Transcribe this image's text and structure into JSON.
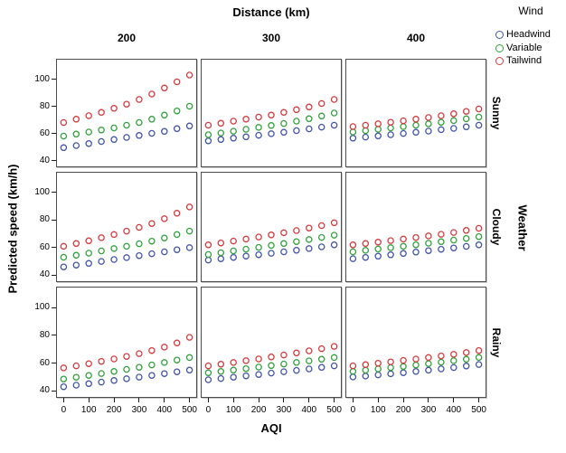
{
  "chart_data": {
    "type": "scatter",
    "xlabel": "AQI",
    "ylabel": "Predicted speed (km/h)",
    "x_ticks": [
      0,
      100,
      200,
      300,
      400,
      500
    ],
    "y_ticks": [
      40,
      60,
      80,
      100
    ],
    "xlim": [
      -30,
      530
    ],
    "ylim": [
      35,
      115
    ],
    "grid": false,
    "marker": "open-circle",
    "x": [
      0,
      50,
      100,
      150,
      200,
      250,
      300,
      350,
      400,
      450,
      500
    ],
    "facet_columns": {
      "title": "Distance (km)",
      "levels": [
        "200",
        "300",
        "400"
      ]
    },
    "facet_rows": {
      "title": "Weather",
      "levels": [
        "Sunny",
        "Cloudy",
        "Rainy"
      ]
    },
    "legend": {
      "title": "Wind",
      "position": "top-right",
      "entries": [
        {
          "label": "Headwind",
          "color": "#4155A5"
        },
        {
          "label": "Variable",
          "color": "#32A03C"
        },
        {
          "label": "Tailwind",
          "color": "#D23B3E"
        }
      ]
    },
    "panels": [
      {
        "row": "Sunny",
        "col": "200",
        "series": {
          "Headwind": [
            49.5,
            51,
            52.5,
            54,
            55.5,
            57,
            58.5,
            60,
            61.5,
            63.5,
            65.5
          ],
          "Variable": [
            58,
            59.5,
            61,
            62.5,
            64,
            66,
            68,
            70.5,
            73.5,
            76.5,
            80
          ],
          "Tailwind": [
            68,
            70.5,
            73,
            75.5,
            78.5,
            81.5,
            85,
            89,
            93.5,
            98,
            103
          ]
        }
      },
      {
        "row": "Sunny",
        "col": "300",
        "series": {
          "Headwind": [
            54.5,
            55.5,
            56.5,
            57.5,
            58.6,
            59.7,
            60.8,
            62,
            63.3,
            64.6,
            66
          ],
          "Variable": [
            59,
            60.3,
            61.6,
            63,
            64.4,
            65.8,
            67.3,
            69,
            70.8,
            72.8,
            75
          ],
          "Tailwind": [
            66,
            67.5,
            69,
            70.5,
            72,
            73.5,
            75.5,
            77.5,
            79.5,
            82,
            85
          ]
        }
      },
      {
        "row": "Sunny",
        "col": "400",
        "series": {
          "Headwind": [
            56.5,
            57.3,
            58.1,
            59,
            59.9,
            60.8,
            61.7,
            62.7,
            63.7,
            64.8,
            66
          ],
          "Variable": [
            61,
            62,
            63,
            64,
            65,
            66,
            67.1,
            68.2,
            69.4,
            70.7,
            72
          ],
          "Tailwind": [
            65,
            66,
            67.1,
            68.2,
            69.3,
            70.5,
            71.7,
            73,
            74.5,
            76.2,
            78
          ]
        }
      },
      {
        "row": "Cloudy",
        "col": "200",
        "series": {
          "Headwind": [
            46,
            47.3,
            48.6,
            50,
            51.4,
            52.8,
            54.2,
            55.6,
            57,
            58.5,
            60
          ],
          "Variable": [
            53,
            54.5,
            56,
            57.6,
            59.3,
            61,
            62.8,
            64.7,
            67,
            69.5,
            72
          ],
          "Tailwind": [
            61,
            63,
            65,
            67.2,
            69.5,
            72,
            74.7,
            77.5,
            81,
            85,
            89.5
          ]
        }
      },
      {
        "row": "Cloudy",
        "col": "300",
        "series": {
          "Headwind": [
            51,
            51.9,
            52.9,
            53.9,
            54.9,
            55.9,
            57,
            58.1,
            59.3,
            60.6,
            62
          ],
          "Variable": [
            55,
            56.3,
            57.6,
            58.9,
            60.2,
            61.6,
            63,
            64.4,
            65.9,
            67.4,
            69
          ],
          "Tailwind": [
            62,
            63.4,
            64.8,
            66.2,
            67.7,
            69.2,
            70.8,
            72.4,
            74.2,
            76,
            78
          ]
        }
      },
      {
        "row": "Cloudy",
        "col": "400",
        "series": {
          "Headwind": [
            52,
            52.9,
            53.8,
            54.8,
            55.8,
            56.8,
            57.8,
            58.8,
            59.8,
            60.9,
            62
          ],
          "Variable": [
            57,
            58,
            59,
            60,
            61,
            62.1,
            63.2,
            64.3,
            65.5,
            66.7,
            68
          ],
          "Tailwind": [
            62,
            63,
            64,
            65.1,
            66.2,
            67.3,
            68.5,
            69.7,
            71,
            72.5,
            74
          ]
        }
      },
      {
        "row": "Rainy",
        "col": "200",
        "series": {
          "Headwind": [
            43,
            44.1,
            45.2,
            46.3,
            47.5,
            48.7,
            49.9,
            51.1,
            52.4,
            53.7,
            55
          ],
          "Variable": [
            48.5,
            49.8,
            51.1,
            52.5,
            54,
            55.5,
            57,
            58.7,
            60.4,
            62.2,
            64
          ],
          "Tailwind": [
            56.5,
            58,
            59.6,
            61.2,
            63,
            64.8,
            66.8,
            69,
            71.5,
            74.5,
            78.5
          ]
        }
      },
      {
        "row": "Rainy",
        "col": "300",
        "series": {
          "Headwind": [
            48,
            48.9,
            49.8,
            50.8,
            51.8,
            52.8,
            53.8,
            54.8,
            55.8,
            56.9,
            58
          ],
          "Variable": [
            53,
            54,
            55,
            56,
            57.1,
            58.2,
            59.3,
            60.4,
            61.6,
            62.8,
            64
          ],
          "Tailwind": [
            58,
            59.2,
            60.4,
            61.7,
            63,
            64.4,
            65.8,
            67.3,
            68.8,
            70.4,
            72
          ]
        }
      },
      {
        "row": "Rainy",
        "col": "400",
        "series": {
          "Headwind": [
            50,
            50.7,
            51.5,
            52.3,
            53.1,
            54,
            54.9,
            55.8,
            56.8,
            57.9,
            59
          ],
          "Variable": [
            54,
            54.9,
            55.8,
            56.7,
            57.6,
            58.6,
            59.6,
            60.6,
            61.7,
            62.8,
            64
          ],
          "Tailwind": [
            58,
            58.9,
            59.9,
            60.9,
            61.9,
            62.9,
            64,
            65.1,
            66.3,
            67.6,
            69
          ]
        }
      }
    ]
  }
}
